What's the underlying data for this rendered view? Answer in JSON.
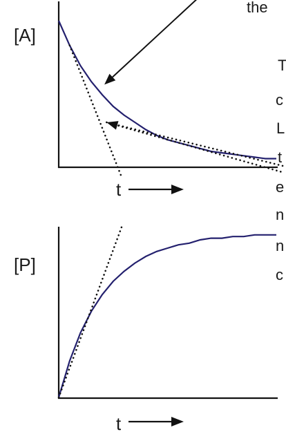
{
  "colors": {
    "curve": "#23206e",
    "ink": "#111111",
    "text": "#1a1a1a"
  },
  "side_text": [
    "the",
    "T",
    "c",
    "L",
    "t",
    "e",
    "n",
    "n",
    "c"
  ],
  "chart_data": [
    {
      "type": "line",
      "ylabel": "[A]",
      "xlabel": "t",
      "axis_arrow": "right-arrow-icon",
      "xlim": [
        0,
        1
      ],
      "ylim": [
        0,
        1
      ],
      "series": [
        {
          "style": "solid",
          "x": [
            0.0,
            0.05,
            0.1,
            0.15,
            0.2,
            0.25,
            0.3,
            0.35,
            0.4,
            0.45,
            0.5,
            0.55,
            0.6,
            0.65,
            0.7,
            0.75,
            0.8,
            0.85,
            0.9,
            0.95,
            1.0
          ],
          "y": [
            1.0,
            0.83,
            0.69,
            0.58,
            0.49,
            0.41,
            0.35,
            0.3,
            0.25,
            0.21,
            0.18,
            0.16,
            0.14,
            0.12,
            0.1,
            0.09,
            0.08,
            0.07,
            0.06,
            0.05,
            0.05
          ]
        },
        {
          "style": "dotted",
          "x": [
            0.05,
            0.29
          ],
          "y": [
            0.83,
            -0.08
          ]
        },
        {
          "style": "dotted",
          "x": [
            0.22,
            1.03
          ],
          "y": [
            0.3,
            0.0
          ]
        }
      ],
      "annotations": [
        {
          "style": "solid-arrow",
          "from": [
            0.78,
            1.35
          ],
          "to": [
            0.21,
            0.56
          ]
        },
        {
          "style": "dotted-arrow",
          "from": [
            1.02,
            -0.04
          ],
          "to": [
            0.22,
            0.3
          ]
        }
      ]
    },
    {
      "type": "line",
      "ylabel": "[P]",
      "xlabel": "t",
      "axis_arrow": "right-arrow-icon",
      "xlim": [
        0,
        1
      ],
      "ylim": [
        0,
        1
      ],
      "series": [
        {
          "style": "solid",
          "x": [
            0.0,
            0.05,
            0.1,
            0.15,
            0.2,
            0.25,
            0.3,
            0.35,
            0.4,
            0.45,
            0.5,
            0.55,
            0.6,
            0.65,
            0.7,
            0.75,
            0.8,
            0.85,
            0.9,
            0.95,
            1.0
          ],
          "y": [
            0.0,
            0.22,
            0.39,
            0.52,
            0.62,
            0.7,
            0.76,
            0.81,
            0.85,
            0.88,
            0.9,
            0.92,
            0.93,
            0.95,
            0.96,
            0.96,
            0.97,
            0.97,
            0.98,
            0.98,
            0.98
          ]
        },
        {
          "style": "dotted",
          "x": [
            0.0,
            0.29
          ],
          "y": [
            0.0,
            1.03
          ]
        }
      ]
    }
  ]
}
